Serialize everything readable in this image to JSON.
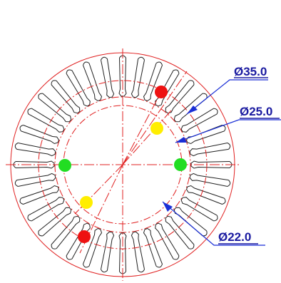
{
  "drawing": {
    "dimensions": [
      {
        "id": "d35",
        "label": "Ø35.0"
      },
      {
        "id": "d25",
        "label": "Ø25.0"
      },
      {
        "id": "d22",
        "label": "Ø22.0"
      }
    ],
    "markers": [
      {
        "ring": "Ø35.0",
        "color": "red",
        "count": 2
      },
      {
        "ring": "Ø25.0",
        "color": "yellow",
        "count": 2
      },
      {
        "ring": "Ø22.0",
        "color": "green",
        "count": 2
      }
    ],
    "slot_count": 36
  },
  "colors": {
    "background": "#ffffff",
    "outline": "#222222",
    "centerline": "#e02020",
    "leader": "#1a2fd6",
    "dim_text": "#1a1aa0",
    "marker_red": "#ee1111",
    "marker_yellow": "#ffee00",
    "marker_green": "#22dd22"
  }
}
